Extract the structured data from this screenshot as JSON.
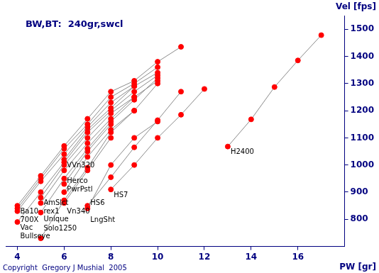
{
  "chart_data": {
    "type": "line",
    "title": "BW,BT:  240gr,swcl",
    "x_label": "PW [gr]",
    "y_label": "Vel [fps]",
    "annotations": [
      "Copyright  Gregory J Mushial  2005"
    ],
    "x": [
      4,
      5,
      6,
      7,
      8,
      9,
      10,
      11,
      12,
      13,
      14,
      15,
      16,
      17
    ],
    "series": [
      {
        "name": "Ba10",
        "values": [
          850,
          960,
          1070,
          1170,
          1270,
          1310,
          1380,
          1435,
          null,
          null,
          null,
          null,
          null,
          null
        ]
      },
      {
        "name": "700X",
        "values": [
          840,
          950,
          1060,
          1150,
          1250,
          1300,
          1360,
          null,
          null,
          null,
          null,
          null,
          null,
          null
        ]
      },
      {
        "name": "Vac",
        "values": [
          830,
          940,
          1040,
          1140,
          1230,
          1290,
          1340,
          null,
          null,
          null,
          null,
          null,
          null,
          null
        ]
      },
      {
        "name": "Bullseye",
        "values": [
          790,
          900,
          1010,
          1120,
          1200,
          1270,
          1330,
          null,
          null,
          null,
          null,
          null,
          null,
          null
        ]
      },
      {
        "name": "AmSlct",
        "values": [
          null,
          880,
          1000,
          1100,
          1190,
          1250,
          1310,
          null,
          null,
          null,
          null,
          null,
          null,
          null
        ]
      },
      {
        "name": "rex1",
        "values": [
          null,
          860,
          980,
          1080,
          1170,
          1250,
          null,
          null,
          null,
          null,
          null,
          null,
          null,
          null
        ]
      },
      {
        "name": "Unique",
        "values": [
          null,
          825,
          950,
          1060,
          1160,
          1240,
          1320,
          null,
          null,
          null,
          null,
          null,
          null,
          null
        ]
      },
      {
        "name": "Solo1250",
        "values": [
          null,
          730,
          870,
          990,
          1120,
          1200,
          1300,
          null,
          null,
          null,
          null,
          null,
          null,
          null
        ]
      },
      {
        "name": "VVn320",
        "values": [
          null,
          null,
          1020,
          1130,
          1210,
          1290,
          null,
          null,
          null,
          null,
          null,
          null,
          null,
          null
        ]
      },
      {
        "name": "PwrPstl",
        "values": [
          null,
          null,
          930,
          1050,
          1150,
          null,
          null,
          null,
          null,
          null,
          null,
          null,
          null,
          null
        ]
      },
      {
        "name": "Herco",
        "values": [
          null,
          null,
          900,
          1030,
          1130,
          1200,
          null,
          null,
          null,
          null,
          null,
          null,
          null,
          null
        ]
      },
      {
        "name": "Vn340",
        "values": [
          null,
          null,
          860,
          980,
          1100,
          null,
          null,
          null,
          null,
          null,
          null,
          null,
          null,
          null
        ]
      },
      {
        "name": "LngSht",
        "values": [
          null,
          null,
          null,
          840,
          1000,
          1100,
          1160,
          null,
          null,
          null,
          null,
          null,
          null,
          null
        ]
      },
      {
        "name": "HS6",
        "values": [
          null,
          null,
          null,
          850,
          955,
          1065,
          1165,
          1270,
          null,
          null,
          null,
          null,
          null,
          null
        ]
      },
      {
        "name": "HS7",
        "values": [
          null,
          null,
          null,
          null,
          910,
          1000,
          1100,
          1185,
          1280,
          null,
          null,
          null,
          null,
          null
        ]
      },
      {
        "name": "H2400",
        "values": [
          null,
          null,
          null,
          null,
          null,
          null,
          null,
          null,
          null,
          1068,
          1168,
          1287,
          1385,
          1478
        ]
      }
    ],
    "color": "#ff0000",
    "marker": "circle",
    "xlim": [
      3.5,
      18
    ],
    "xticks": [
      4,
      6,
      8,
      10,
      12,
      14,
      16
    ],
    "ylim": [
      700,
      1550
    ],
    "yticks": [
      800,
      900,
      1000,
      1100,
      1200,
      1300,
      1400,
      1500
    ],
    "grid": false
  }
}
